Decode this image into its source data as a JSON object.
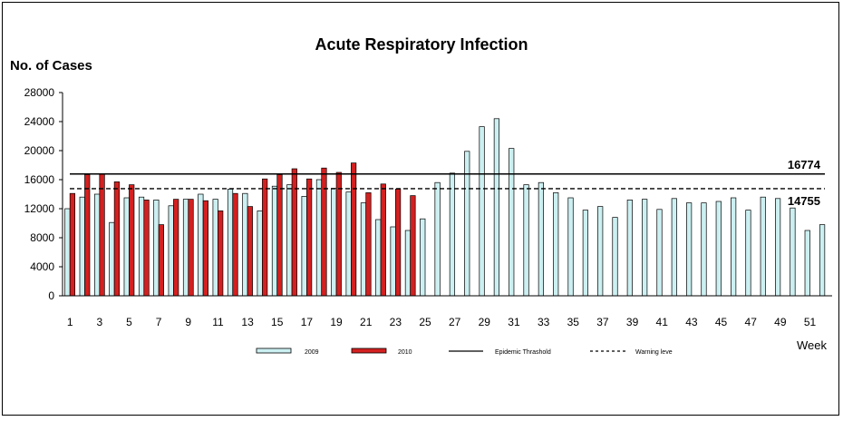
{
  "chart_data": {
    "type": "bar",
    "title": "Acute Respiratory Infection",
    "ylabel": "No. of Cases",
    "xlabel": "Week",
    "ylim": [
      0,
      28000
    ],
    "yticks": [
      "0",
      "4000",
      "8000",
      "12000",
      "16000",
      "20000",
      "24000",
      "28000"
    ],
    "xticks": [
      "1",
      "3",
      "5",
      "7",
      "9",
      "11",
      "13",
      "15",
      "17",
      "19",
      "21",
      "23",
      "25",
      "27",
      "29",
      "31",
      "33",
      "35",
      "37",
      "39",
      "41",
      "43",
      "45",
      "47",
      "49",
      "51"
    ],
    "weeks": [
      1,
      2,
      3,
      4,
      5,
      6,
      7,
      8,
      9,
      10,
      11,
      12,
      13,
      14,
      15,
      16,
      17,
      18,
      19,
      20,
      21,
      22,
      23,
      24,
      25,
      26,
      27,
      28,
      29,
      30,
      31,
      32,
      33,
      34,
      35,
      36,
      37,
      38,
      39,
      40,
      41,
      42,
      43,
      44,
      45,
      46,
      47,
      48,
      49,
      50,
      51,
      52
    ],
    "series": [
      {
        "name": "2009",
        "color": "#ccf0f2",
        "values": [
          12000,
          13600,
          14000,
          10100,
          13500,
          13600,
          13200,
          12400,
          13300,
          14000,
          13300,
          14700,
          14100,
          11700,
          15100,
          15300,
          13700,
          16000,
          14800,
          14300,
          12800,
          10500,
          9500,
          9000,
          10600,
          15600,
          16900,
          19900,
          23300,
          24400,
          20300,
          15300,
          15600,
          14200,
          13500,
          11800,
          12300,
          10800,
          13200,
          13300,
          11900,
          13400,
          12800,
          12800,
          13000,
          13500,
          11800,
          13600,
          13400,
          12100,
          9000,
          9800
        ]
      },
      {
        "name": "2010",
        "color": "#d42020",
        "values": [
          14100,
          16700,
          16800,
          15700,
          15300,
          13200,
          9800,
          13300,
          13300,
          13100,
          11700,
          14100,
          12300,
          16100,
          16700,
          17500,
          16100,
          17600,
          17000,
          18300,
          14200,
          15400,
          14700,
          13800
        ]
      }
    ],
    "lines": [
      {
        "name": "Epidemic Threshold",
        "value": 16774,
        "label": "16774",
        "style": "solid"
      },
      {
        "name": "Warning level",
        "value": 14755,
        "label": "14755",
        "style": "dashed"
      }
    ],
    "legend": {
      "placement": "bottom",
      "entries": [
        "2009",
        "2010",
        "Epidemic Thrashold",
        "Warning leve"
      ]
    },
    "grid": false
  }
}
